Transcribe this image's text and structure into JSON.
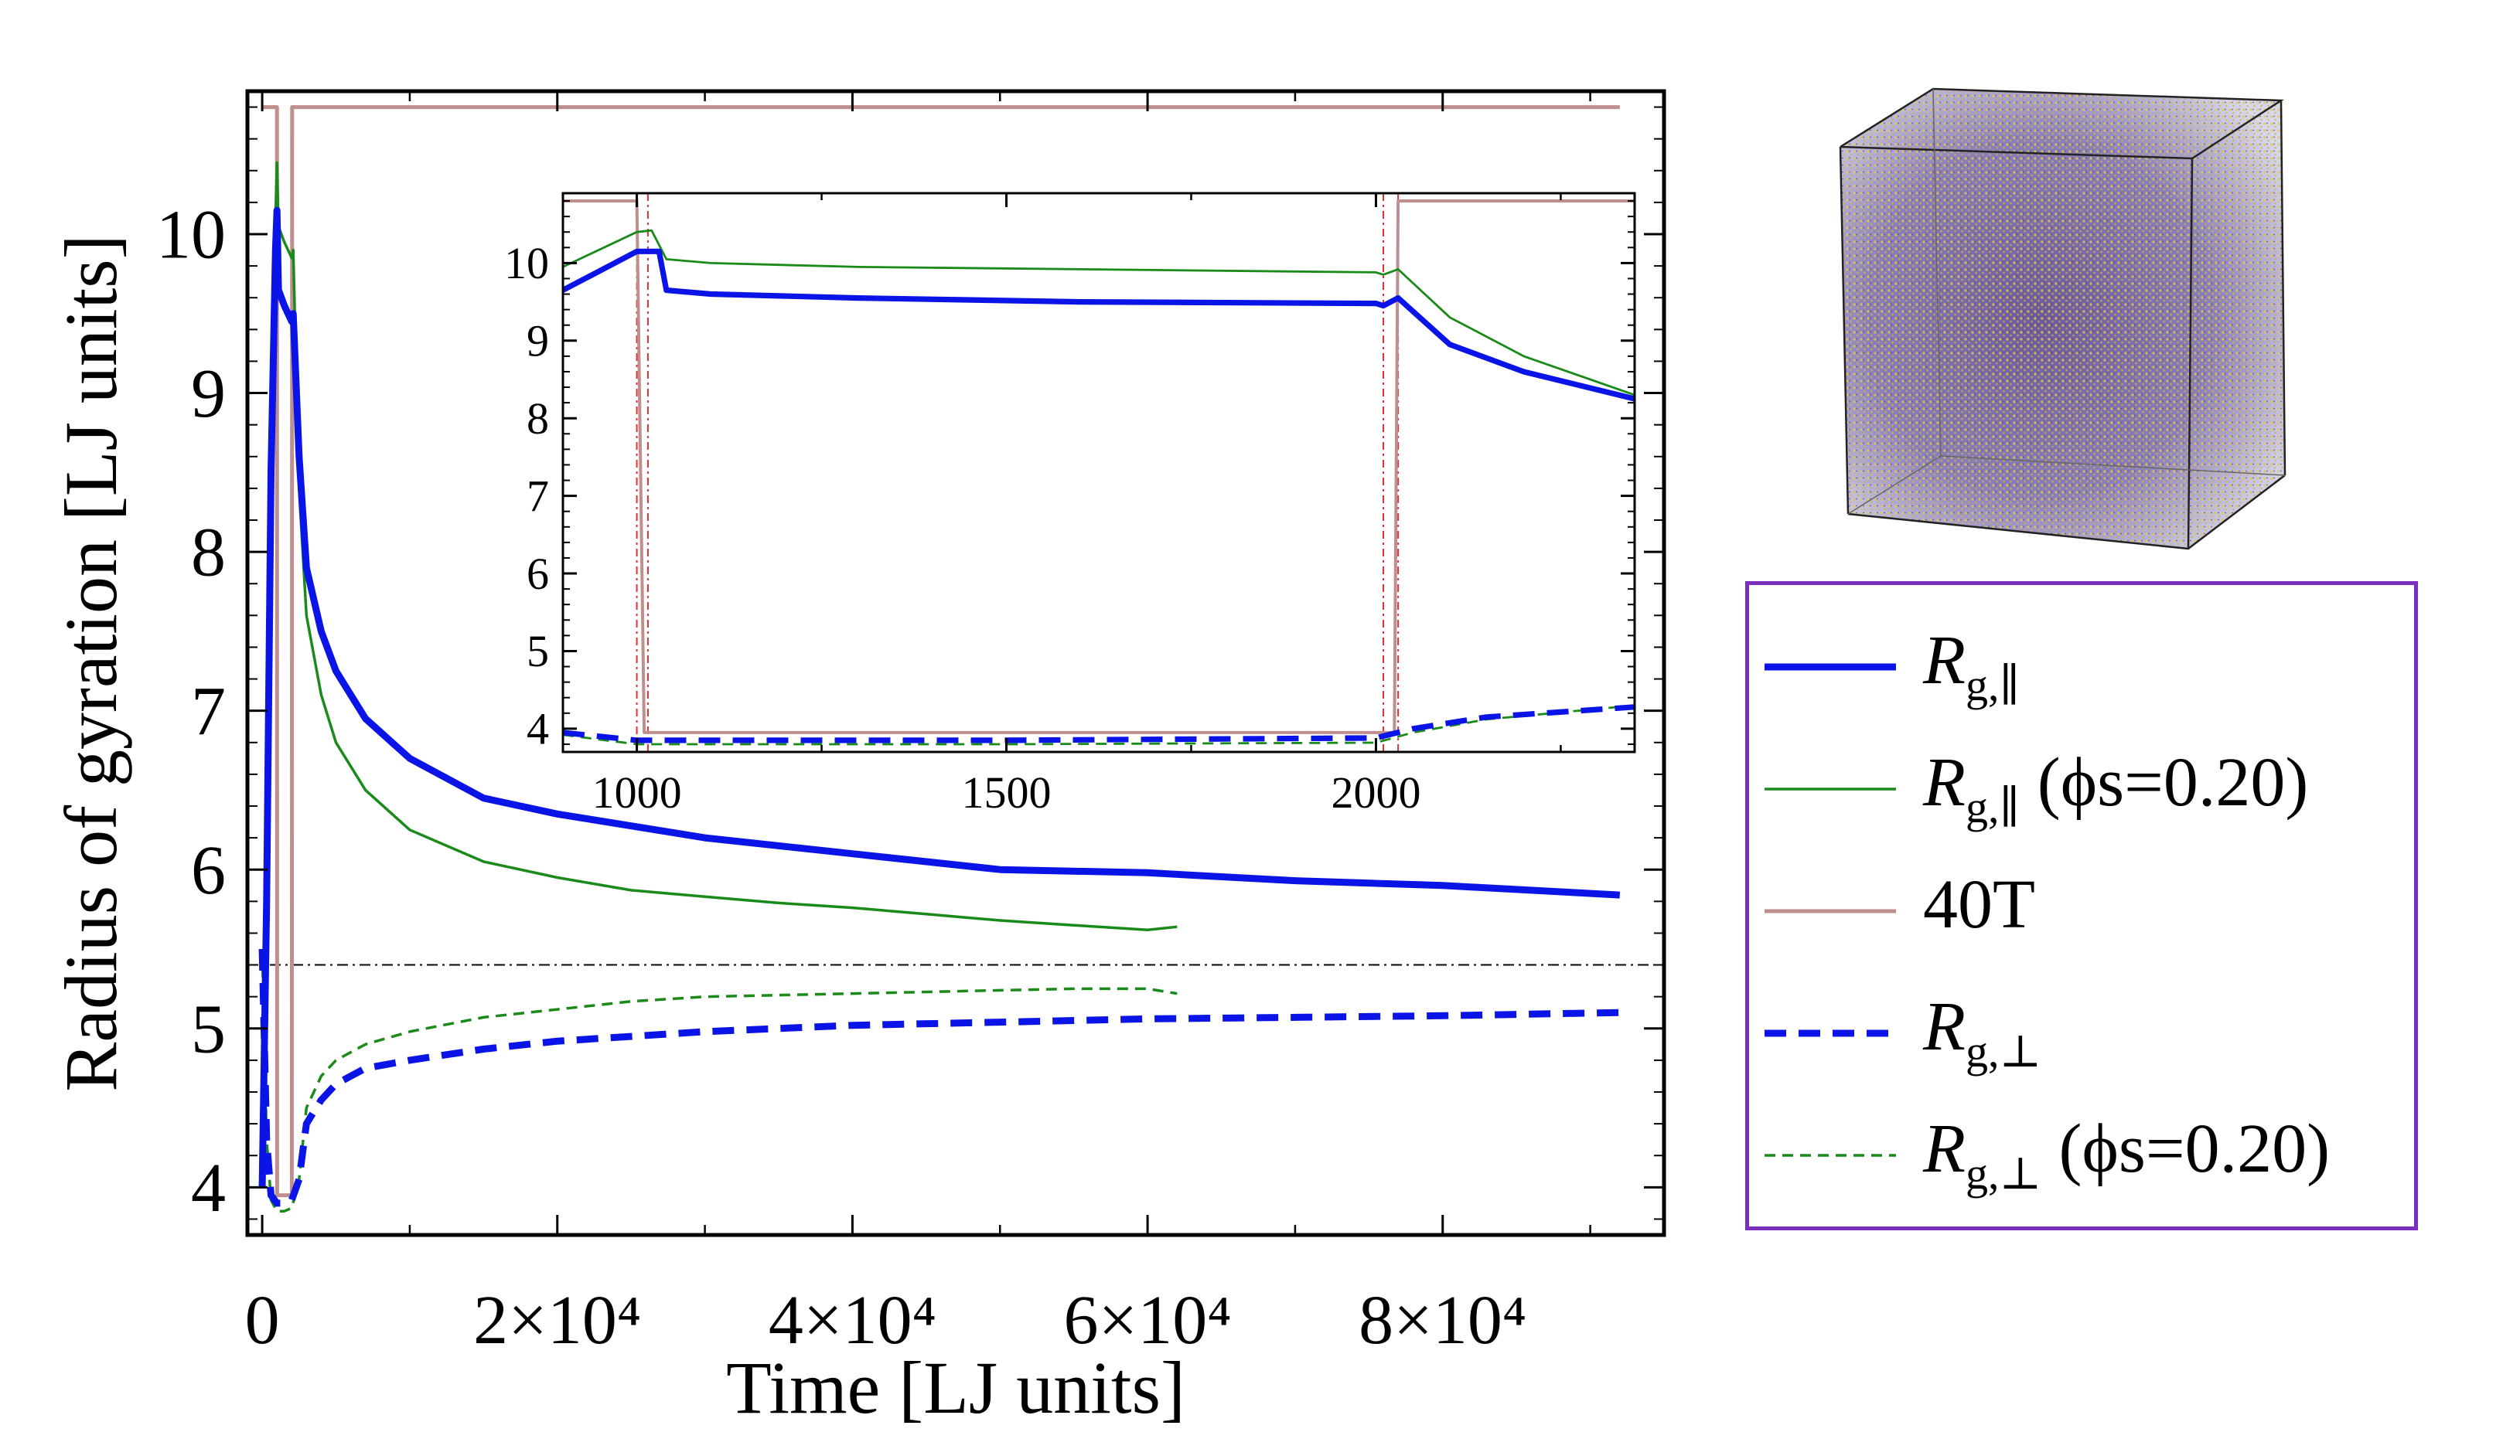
{
  "chart_data": [
    {
      "type": "line",
      "xlabel": "Time [LJ units]",
      "ylabel": "Radius of gyration [LJ units]",
      "xlim": [
        -1000,
        95000
      ],
      "ylim": [
        3.7,
        10.9
      ],
      "xticks": [
        0,
        20000,
        40000,
        60000,
        80000
      ],
      "xtick_labels": [
        "0",
        "2×10⁴",
        "4×10⁴",
        "6×10⁴",
        "8×10⁴"
      ],
      "yticks": [
        4,
        5,
        6,
        7,
        8,
        9,
        10
      ],
      "ytick_labels": [
        "4",
        "5",
        "6",
        "7",
        "8",
        "9",
        "10"
      ],
      "hline": 5.4,
      "series": [
        {
          "name": "Rg,∥",
          "color": "#0a14e6",
          "style": "solid-thick",
          "x": [
            0,
            300,
            600,
            900,
            1000,
            1100,
            1500,
            2000,
            2100,
            2500,
            3000,
            4000,
            5000,
            7000,
            10000,
            15000,
            20000,
            30000,
            40000,
            50000,
            60000,
            70000,
            80000,
            92000
          ],
          "y": [
            4.0,
            5.8,
            8.5,
            9.9,
            10.15,
            9.65,
            9.55,
            9.45,
            9.5,
            8.6,
            7.9,
            7.5,
            7.25,
            6.95,
            6.7,
            6.45,
            6.35,
            6.2,
            6.1,
            6.0,
            5.98,
            5.93,
            5.9,
            5.84
          ]
        },
        {
          "name": "Rg,∥ (ϕs=0.20)",
          "color": "#1a8a1a",
          "style": "solid-thin",
          "x": [
            0,
            300,
            600,
            900,
            1000,
            1100,
            1500,
            2000,
            2100,
            2500,
            3000,
            4000,
            5000,
            7000,
            10000,
            15000,
            20000,
            25000,
            30000,
            35000,
            40000,
            45000,
            50000,
            55000,
            60000,
            62000
          ],
          "y": [
            4.0,
            6.0,
            8.7,
            10.1,
            10.45,
            10.05,
            9.95,
            9.85,
            9.9,
            8.4,
            7.6,
            7.1,
            6.8,
            6.5,
            6.25,
            6.05,
            5.95,
            5.87,
            5.83,
            5.79,
            5.76,
            5.72,
            5.68,
            5.65,
            5.62,
            5.64
          ]
        },
        {
          "name": "40T",
          "color": "#bf8f8f",
          "style": "solid-mid",
          "x": [
            0,
            900,
            1000,
            1010,
            2010,
            2030,
            92000
          ],
          "y": [
            10.8,
            10.8,
            10.8,
            3.95,
            3.95,
            10.8,
            10.8
          ]
        },
        {
          "name": "Rg,⊥",
          "color": "#0a14e6",
          "style": "dashed-thick",
          "x": [
            0,
            300,
            600,
            1000,
            1500,
            2000,
            2500,
            3000,
            4000,
            5000,
            7000,
            10000,
            15000,
            20000,
            30000,
            40000,
            50000,
            60000,
            70000,
            80000,
            92000
          ],
          "y": [
            5.5,
            4.3,
            3.95,
            3.9,
            3.9,
            3.92,
            4.05,
            4.4,
            4.55,
            4.65,
            4.75,
            4.8,
            4.87,
            4.92,
            4.98,
            5.02,
            5.04,
            5.06,
            5.07,
            5.08,
            5.1
          ]
        },
        {
          "name": "Rg,⊥ (ϕs=0.20)",
          "color": "#1a8a1a",
          "style": "dashed-thin",
          "x": [
            0,
            300,
            600,
            1000,
            1500,
            2000,
            2500,
            3000,
            4000,
            5000,
            7000,
            10000,
            15000,
            20000,
            25000,
            30000,
            40000,
            50000,
            55000,
            60000,
            62000
          ],
          "y": [
            5.5,
            4.3,
            3.92,
            3.85,
            3.85,
            3.87,
            4.05,
            4.5,
            4.7,
            4.8,
            4.9,
            4.98,
            5.07,
            5.12,
            5.17,
            5.2,
            5.22,
            5.24,
            5.25,
            5.25,
            5.22
          ]
        }
      ]
    },
    {
      "type": "line",
      "inset": true,
      "xlim": [
        900,
        2350
      ],
      "ylim": [
        3.7,
        10.9
      ],
      "xticks": [
        1000,
        1500,
        2000
      ],
      "xtick_labels": [
        "1000",
        "1500",
        "2000"
      ],
      "yticks": [
        4,
        5,
        6,
        7,
        8,
        9,
        10
      ],
      "ytick_labels": [
        "4",
        "5",
        "6",
        "7",
        "8",
        "9",
        "10"
      ],
      "vlines": [
        1000,
        1015,
        2010,
        2030
      ],
      "series": [
        {
          "name": "Rg,∥",
          "color": "#0a14e6",
          "style": "solid-thick",
          "x": [
            900,
            1000,
            1030,
            1040,
            1100,
            1300,
            1600,
            2000,
            2010,
            2030,
            2100,
            2200,
            2350
          ],
          "y": [
            9.65,
            10.15,
            10.15,
            9.65,
            9.6,
            9.55,
            9.5,
            9.48,
            9.45,
            9.55,
            8.95,
            8.6,
            8.25
          ]
        },
        {
          "name": "Rg,∥ (ϕs=0.20)",
          "color": "#1a8a1a",
          "style": "solid-thin",
          "x": [
            900,
            1000,
            1020,
            1040,
            1100,
            1300,
            1600,
            2000,
            2010,
            2030,
            2100,
            2200,
            2350
          ],
          "y": [
            9.95,
            10.4,
            10.42,
            10.05,
            10.0,
            9.95,
            9.92,
            9.88,
            9.85,
            9.92,
            9.3,
            8.8,
            8.3
          ]
        },
        {
          "name": "40T",
          "color": "#bf8f8f",
          "style": "solid-mid",
          "x": [
            900,
            990,
            1000,
            1010,
            2010,
            2025,
            2030,
            2350
          ],
          "y": [
            10.8,
            10.8,
            10.8,
            3.95,
            3.95,
            3.95,
            10.8,
            10.8
          ]
        },
        {
          "name": "Rg,⊥",
          "color": "#0a14e6",
          "style": "dashed-thick",
          "x": [
            900,
            1000,
            1100,
            1500,
            2000,
            2050,
            2150,
            2350
          ],
          "y": [
            3.95,
            3.85,
            3.85,
            3.85,
            3.88,
            4.0,
            4.15,
            4.28
          ]
        },
        {
          "name": "Rg,⊥ (ϕs=0.20)",
          "color": "#1a8a1a",
          "style": "dashed-thin",
          "x": [
            900,
            1000,
            1100,
            1500,
            2000,
            2050,
            2150,
            2350
          ],
          "y": [
            3.92,
            3.8,
            3.8,
            3.8,
            3.82,
            3.95,
            4.12,
            4.3
          ]
        }
      ]
    }
  ],
  "legend": {
    "items": [
      {
        "symbol": "R",
        "subscript": "g,∥",
        "suffix": "",
        "color": "#0a14e6",
        "style": "solid-thick"
      },
      {
        "symbol": "R",
        "subscript": "g,∥",
        "suffix": " (ϕs=0.20)",
        "color": "#1a8a1a",
        "style": "solid-thin"
      },
      {
        "symbol": "40T",
        "subscript": "",
        "suffix": "",
        "color": "#bf8f8f",
        "style": "solid-mid"
      },
      {
        "symbol": "R",
        "subscript": "g,⊥",
        "suffix": "",
        "color": "#0a14e6",
        "style": "dashed-thick"
      },
      {
        "symbol": "R",
        "subscript": "g,⊥",
        "suffix": " (ϕs=0.20)",
        "color": "#1a8a1a",
        "style": "dashed-thin"
      }
    ]
  },
  "snapshot": {
    "description_icon": "simulation-box-icon"
  }
}
